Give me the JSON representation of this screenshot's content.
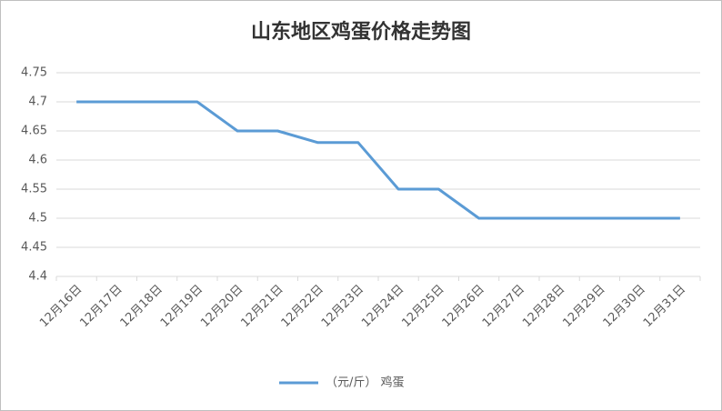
{
  "chart_data": {
    "type": "line",
    "title": "山东地区鸡蛋价格走势图",
    "categories": [
      "12月16日",
      "12月17日",
      "12月18日",
      "12月19日",
      "12月20日",
      "12月21日",
      "12月22日",
      "12月23日",
      "12月24日",
      "12月25日",
      "12月26日",
      "12月27日",
      "12月28日",
      "12月29日",
      "12月30日",
      "12月31日"
    ],
    "series": [
      {
        "name": "（元/斤） 鸡蛋",
        "color": "#5b9bd5",
        "values": [
          4.7,
          4.7,
          4.7,
          4.7,
          4.65,
          4.65,
          4.63,
          4.63,
          4.55,
          4.55,
          4.5,
          4.5,
          4.5,
          4.5,
          4.5,
          4.5
        ]
      }
    ],
    "ylim": [
      4.4,
      4.75
    ],
    "yticks": [
      4.4,
      4.45,
      4.5,
      4.55,
      4.6,
      4.65,
      4.7,
      4.75
    ],
    "grid": true,
    "legend": "bottom"
  }
}
